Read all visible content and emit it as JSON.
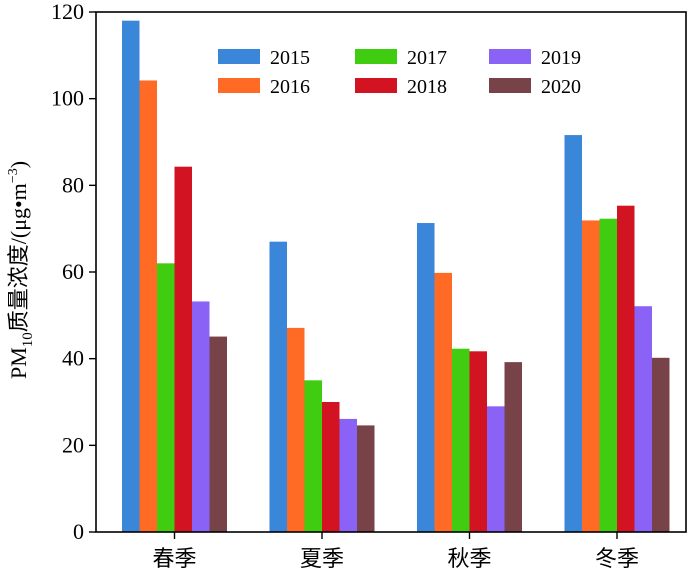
{
  "chart_data": {
    "type": "bar",
    "categories": [
      "春季",
      "夏季",
      "秋季",
      "冬季"
    ],
    "series": [
      {
        "name": "2015",
        "color": "#3a86d8",
        "values": [
          118,
          67,
          71.3,
          91.6
        ]
      },
      {
        "name": "2016",
        "color": "#ff6a24",
        "values": [
          104.2,
          47.1,
          59.8,
          71.9
        ]
      },
      {
        "name": "2017",
        "color": "#3fcc11",
        "values": [
          62,
          35,
          42.3,
          72.3
        ]
      },
      {
        "name": "2018",
        "color": "#d21321",
        "values": [
          84.3,
          30,
          41.7,
          75.3
        ]
      },
      {
        "name": "2019",
        "color": "#8a63f6",
        "values": [
          53.2,
          26.1,
          29,
          52.1
        ]
      },
      {
        "name": "2020",
        "color": "#774248",
        "values": [
          45.1,
          24.6,
          39.2,
          40.2
        ]
      }
    ],
    "ylabel": {
      "prefix": "PM",
      "sub": "10",
      "main": "质量浓度/(μg•m",
      "sup": "−3",
      "suffix": ")"
    },
    "xlabel": "",
    "ylim": [
      0,
      120
    ],
    "yticks": [
      0,
      20,
      40,
      60,
      80,
      100,
      120
    ],
    "legend_placement": "top-right",
    "grid": false
  }
}
